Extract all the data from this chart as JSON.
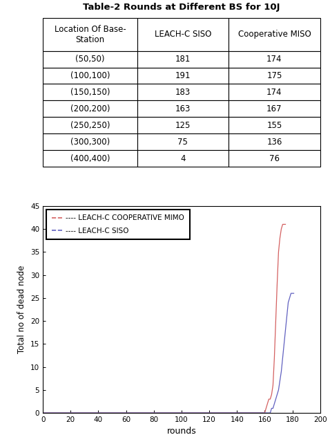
{
  "title": "Table-2 Rounds at Different BS for 10J",
  "table_headers": [
    "Location Of Base-\nStation",
    "LEACH-C SISO",
    "Cooperative MISO"
  ],
  "table_rows": [
    [
      "(50,50)",
      "181",
      "174"
    ],
    [
      "(100,100)",
      "191",
      "175"
    ],
    [
      "(150,150)",
      "183",
      "174"
    ],
    [
      "(200,200)",
      "163",
      "167"
    ],
    [
      "(250,250)",
      "125",
      "155"
    ],
    [
      "(300,300)",
      "75",
      "136"
    ],
    [
      "(400,400)",
      "4",
      "76"
    ]
  ],
  "plot_xlabel": "rounds",
  "plot_ylabel": "Total no of dead node",
  "plot_xlim": [
    0,
    200
  ],
  "plot_ylim": [
    0,
    45
  ],
  "plot_xticks": [
    0,
    20,
    40,
    60,
    80,
    100,
    120,
    140,
    160,
    180,
    200
  ],
  "plot_yticks": [
    0,
    5,
    10,
    15,
    20,
    25,
    30,
    35,
    40,
    45
  ],
  "legend_entries": [
    "---- LEACH-C COOPERATIVE MIMO",
    "---- LEACH-C SISO"
  ],
  "red_line_color": "#d46060",
  "blue_line_color": "#6060c0",
  "red_x": [
    0,
    155,
    156,
    157,
    158,
    159,
    160,
    161,
    162,
    163,
    164,
    165,
    166,
    167,
    168,
    169,
    170,
    171,
    172,
    173,
    174,
    175
  ],
  "red_y": [
    0,
    0,
    0,
    0,
    0,
    0,
    0,
    1,
    2,
    3,
    3,
    4,
    6,
    12,
    20,
    28,
    35,
    38,
    40,
    41,
    41,
    41
  ],
  "blue_x": [
    0,
    160,
    161,
    162,
    163,
    164,
    165,
    166,
    167,
    168,
    169,
    170,
    171,
    172,
    173,
    174,
    175,
    176,
    177,
    178,
    179,
    180,
    181
  ],
  "blue_y": [
    0,
    0,
    0,
    0,
    0,
    0,
    1,
    1,
    2,
    3,
    4,
    5,
    7,
    9,
    12,
    15,
    18,
    21,
    24,
    25,
    26,
    26,
    26
  ]
}
